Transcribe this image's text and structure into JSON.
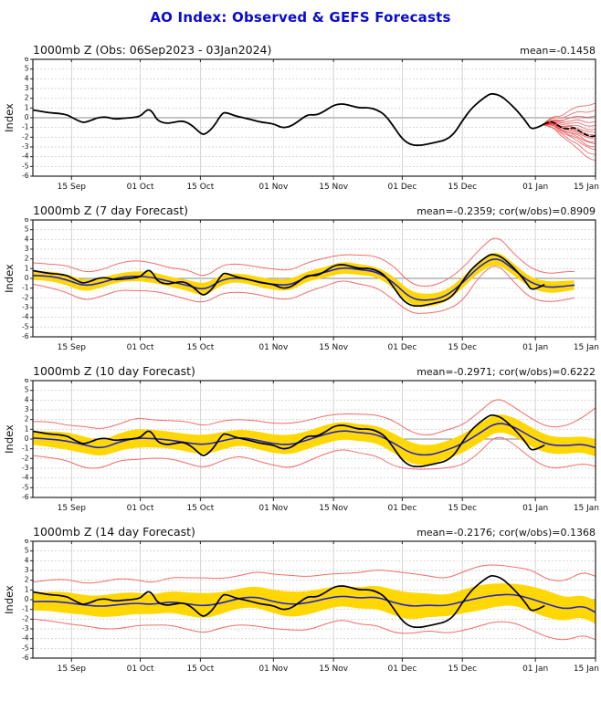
{
  "page_title": "AO Index: Observed & GEFS Forecasts",
  "colors": {
    "title": "#0b0bd0",
    "panel_text": "#111111",
    "observed": "#000000",
    "forecast_mean_line": "#2323c8",
    "ensemble_member": "#e23434",
    "envelope": "#f26c6c",
    "spread_band": "#ffd703",
    "grid": "#cccccc",
    "zero_line": "#8a8a8a",
    "frame": "#222222",
    "tick_text": "#111111"
  },
  "axes": {
    "ylabel": "Index",
    "y_min": -6,
    "y_max": 6,
    "y_ticks": [
      6,
      5,
      4,
      3,
      2,
      1,
      0,
      -1,
      -2,
      -3,
      -4,
      -5,
      -6
    ],
    "x_span_days": 131,
    "x_start_label": "06 Sep 2023",
    "x_ticks": [
      {
        "day": 9,
        "label": "15 Sep"
      },
      {
        "day": 25,
        "label": "01 Oct"
      },
      {
        "day": 39,
        "label": "15 Oct"
      },
      {
        "day": 56,
        "label": "01 Nov"
      },
      {
        "day": 70,
        "label": "15 Nov"
      },
      {
        "day": 86,
        "label": "01 Dec"
      },
      {
        "day": 100,
        "label": "15 Dec"
      },
      {
        "day": 117,
        "label": "01 Jan"
      },
      {
        "day": 131,
        "label": "15 Jan"
      }
    ]
  },
  "chart_data": [
    {
      "type": "line",
      "panel": "observed",
      "title": "1000mb Z (Obs: 06Sep2023 - 03Jan2024)",
      "stats": "mean=-0.1458",
      "ylabel": "Index",
      "ylim": [
        -6,
        6
      ],
      "legend": {
        "observed": "black solid",
        "ensemble_members": "red thin",
        "ensemble_mean_forecast": "black dashed"
      },
      "series": {
        "observed": {
          "points": [
            [
              0,
              0.8
            ],
            [
              2,
              0.65
            ],
            [
              4,
              0.5
            ],
            [
              6,
              0.45
            ],
            [
              8,
              0.3
            ],
            [
              9,
              0.05
            ],
            [
              11,
              -0.4
            ],
            [
              12,
              -0.5
            ],
            [
              14,
              -0.2
            ],
            [
              15,
              0.0
            ],
            [
              17,
              0.1
            ],
            [
              19,
              -0.15
            ],
            [
              21,
              -0.05
            ],
            [
              23,
              0.0
            ],
            [
              25,
              0.15
            ],
            [
              26,
              0.6
            ],
            [
              27,
              0.9
            ],
            [
              28,
              0.5
            ],
            [
              29,
              -0.3
            ],
            [
              31,
              -0.6
            ],
            [
              33,
              -0.45
            ],
            [
              35,
              -0.3
            ],
            [
              37,
              -0.75
            ],
            [
              39,
              -1.6
            ],
            [
              40,
              -1.75
            ],
            [
              42,
              -1.0
            ],
            [
              44,
              0.45
            ],
            [
              45,
              0.55
            ],
            [
              47,
              0.2
            ],
            [
              49,
              0.0
            ],
            [
              51,
              -0.2
            ],
            [
              53,
              -0.45
            ],
            [
              56,
              -0.6
            ],
            [
              58,
              -1.05
            ],
            [
              60,
              -0.9
            ],
            [
              62,
              -0.3
            ],
            [
              64,
              0.35
            ],
            [
              66,
              0.25
            ],
            [
              68,
              0.7
            ],
            [
              70,
              1.3
            ],
            [
              72,
              1.45
            ],
            [
              74,
              1.25
            ],
            [
              76,
              1.0
            ],
            [
              78,
              1.05
            ],
            [
              80,
              0.85
            ],
            [
              82,
              0.3
            ],
            [
              84,
              -0.9
            ],
            [
              86,
              -2.2
            ],
            [
              88,
              -2.8
            ],
            [
              90,
              -2.85
            ],
            [
              92,
              -2.7
            ],
            [
              94,
              -2.5
            ],
            [
              96,
              -2.3
            ],
            [
              98,
              -1.7
            ],
            [
              100,
              -0.3
            ],
            [
              102,
              0.9
            ],
            [
              104,
              1.7
            ],
            [
              106,
              2.35
            ],
            [
              107,
              2.5
            ],
            [
              109,
              2.25
            ],
            [
              111,
              1.5
            ],
            [
              113,
              0.6
            ],
            [
              115,
              -0.5
            ],
            [
              116,
              -1.2
            ],
            [
              118,
              -0.9
            ],
            [
              119,
              -0.65
            ]
          ]
        },
        "ensemble_mean": {
          "points": [
            [
              119,
              -0.65
            ],
            [
              120,
              -0.45
            ],
            [
              121,
              -0.4
            ],
            [
              122,
              -0.7
            ],
            [
              123,
              -1.0
            ],
            [
              124,
              -1.15
            ],
            [
              125,
              -1.1
            ],
            [
              126,
              -1.0
            ],
            [
              127,
              -1.3
            ],
            [
              128,
              -1.55
            ],
            [
              129,
              -1.8
            ],
            [
              130,
              -1.95
            ],
            [
              131,
              -1.85
            ]
          ]
        },
        "members": {
          "days": [
            119,
            121,
            123,
            125,
            127,
            129,
            131
          ],
          "values": [
            [
              -0.8,
              -0.9,
              -1.9,
              -2.5,
              -3.2,
              -4.1,
              -4.4
            ],
            [
              -0.7,
              -0.9,
              -1.6,
              -2.3,
              -2.7,
              -3.6,
              -3.8
            ],
            [
              -0.72,
              -0.6,
              -1.55,
              -1.85,
              -2.45,
              -3.0,
              -3.3
            ],
            [
              -0.68,
              -0.7,
              -1.3,
              -1.8,
              -2.1,
              -2.9,
              -3.0
            ],
            [
              -0.7,
              -0.5,
              -1.35,
              -1.5,
              -2.0,
              -2.5,
              -2.7
            ],
            [
              -0.73,
              -0.45,
              -1.25,
              -1.55,
              -1.7,
              -2.45,
              -2.5
            ],
            [
              -0.69,
              -0.55,
              -1.05,
              -1.35,
              -1.6,
              -2.05,
              -2.2
            ],
            [
              -0.71,
              -0.35,
              -1.1,
              -1.2,
              -1.45,
              -1.9,
              -2.0
            ],
            [
              -0.7,
              -0.45,
              -0.9,
              -1.1,
              -1.3,
              -1.7,
              -1.8
            ],
            [
              -0.68,
              -0.3,
              -0.95,
              -0.85,
              -1.1,
              -1.45,
              -1.5
            ],
            [
              -0.66,
              -0.35,
              -0.7,
              -0.8,
              -0.75,
              -1.25,
              -1.2
            ],
            [
              -0.7,
              -0.25,
              -0.55,
              -0.6,
              -0.45,
              -0.9,
              -0.8
            ],
            [
              -0.64,
              -0.2,
              -0.4,
              -0.4,
              -0.15,
              -0.55,
              -0.4
            ],
            [
              -0.62,
              -0.1,
              -0.35,
              0.0,
              0.2,
              0.0,
              0.2
            ],
            [
              -0.6,
              0.1,
              -0.1,
              0.3,
              0.7,
              0.5,
              0.8
            ],
            [
              -0.58,
              0.2,
              0.1,
              0.8,
              1.2,
              1.2,
              1.5
            ]
          ]
        }
      }
    },
    {
      "type": "line",
      "panel": "forecast_7day",
      "title": "1000mb Z (7 day Forecast)",
      "stats": "mean=-0.2359; cor(w/obs)=0.8909",
      "ylabel": "Index",
      "ylim": [
        -6,
        6
      ],
      "legend": {
        "observed": "black solid",
        "ensemble_mean": "blue",
        "spread_band": "yellow",
        "min_max_envelope": "red"
      },
      "series": {
        "days": [
          0,
          4,
          8,
          12,
          16,
          20,
          24,
          28,
          32,
          36,
          40,
          44,
          48,
          52,
          56,
          60,
          64,
          68,
          72,
          76,
          80,
          84,
          88,
          92,
          96,
          100,
          104,
          108,
          112,
          116,
          120,
          124,
          126
        ],
        "ens_mean": [
          0.3,
          0.25,
          -0.15,
          -0.8,
          -0.45,
          0.1,
          0.25,
          0.1,
          -0.35,
          -0.7,
          -1.25,
          -0.1,
          0.1,
          -0.3,
          -0.65,
          -0.7,
          0.25,
          0.6,
          1.15,
          0.9,
          0.7,
          -0.4,
          -2.1,
          -2.3,
          -1.9,
          -0.5,
          1.3,
          2.25,
          0.9,
          -0.5,
          -0.95,
          -0.8,
          -0.7
        ],
        "band_halfwidth": [
          0.45,
          0.5,
          0.55,
          0.6,
          0.5,
          0.45,
          0.5,
          0.55,
          0.5,
          0.55,
          0.65,
          0.5,
          0.45,
          0.5,
          0.55,
          0.6,
          0.5,
          0.55,
          0.6,
          0.55,
          0.5,
          0.6,
          0.7,
          0.65,
          0.6,
          0.55,
          0.6,
          0.65,
          0.6,
          0.55,
          0.6,
          0.55,
          0.5
        ],
        "env_upper": [
          1.6,
          1.45,
          1.35,
          0.6,
          0.85,
          1.6,
          1.85,
          1.6,
          1.05,
          0.9,
          0.05,
          1.4,
          1.5,
          1.2,
          0.95,
          0.8,
          1.65,
          2.1,
          2.45,
          2.4,
          2.3,
          1.3,
          -0.6,
          -0.9,
          -0.3,
          1.0,
          3.0,
          4.55,
          2.5,
          1.0,
          0.45,
          0.7,
          0.7
        ],
        "env_lower": [
          -0.6,
          -0.95,
          -1.45,
          -2.3,
          -1.85,
          -1.2,
          -1.25,
          -1.3,
          -1.65,
          -2.2,
          -2.55,
          -1.5,
          -1.4,
          -1.6,
          -2.05,
          -2.2,
          -1.35,
          -0.8,
          -0.15,
          -0.6,
          -0.9,
          -2.2,
          -3.6,
          -3.6,
          -3.3,
          -2.4,
          0.3,
          1.65,
          -0.4,
          -2.1,
          -2.45,
          -2.2,
          -2.0
        ]
      },
      "observed_overlay": true
    },
    {
      "type": "line",
      "panel": "forecast_10day",
      "title": "1000mb Z (10 day Forecast)",
      "stats": "mean=-0.2971; cor(w/obs)=0.6222",
      "ylabel": "Index",
      "ylim": [
        -6,
        6
      ],
      "series": {
        "days": [
          0,
          4,
          8,
          12,
          16,
          20,
          24,
          28,
          32,
          36,
          40,
          44,
          48,
          52,
          56,
          60,
          64,
          68,
          72,
          76,
          80,
          84,
          88,
          92,
          96,
          100,
          104,
          108,
          112,
          116,
          120,
          124,
          128,
          131
        ],
        "ens_mean": [
          0.1,
          0.0,
          -0.2,
          -0.6,
          -1.0,
          -0.3,
          0.1,
          0.05,
          -0.1,
          -0.4,
          -0.6,
          -0.2,
          0.2,
          -0.1,
          -0.5,
          -0.6,
          -0.1,
          0.5,
          0.9,
          0.65,
          0.5,
          -0.4,
          -1.5,
          -1.7,
          -1.2,
          -0.5,
          0.6,
          1.75,
          1.3,
          0.2,
          -0.6,
          -0.7,
          -0.5,
          -0.9
        ],
        "band_halfwidth": [
          0.7,
          0.8,
          0.9,
          0.85,
          0.8,
          0.9,
          0.95,
          0.9,
          0.85,
          0.9,
          1.0,
          0.9,
          0.8,
          0.9,
          0.95,
          1.0,
          0.9,
          0.95,
          0.9,
          0.85,
          0.9,
          1.0,
          1.1,
          1.0,
          0.9,
          0.95,
          1.0,
          0.9,
          0.95,
          1.0,
          0.9,
          0.85,
          0.8,
          0.9
        ],
        "env_upper": [
          1.8,
          1.8,
          1.4,
          1.3,
          1.0,
          1.5,
          2.2,
          1.95,
          1.9,
          1.8,
          1.3,
          1.9,
          2.0,
          1.9,
          1.6,
          1.6,
          1.9,
          2.4,
          2.6,
          2.55,
          2.5,
          1.9,
          0.7,
          0.3,
          0.9,
          1.4,
          2.8,
          4.35,
          3.3,
          2.1,
          1.2,
          1.3,
          2.2,
          3.2
        ],
        "env_lower": [
          -1.7,
          -1.9,
          -2.2,
          -3.0,
          -3.0,
          -2.2,
          -2.1,
          -1.95,
          -2.0,
          -2.5,
          -3.0,
          -2.2,
          -1.7,
          -2.2,
          -2.7,
          -3.0,
          -2.3,
          -1.5,
          -1.0,
          -1.45,
          -1.7,
          -2.8,
          -3.1,
          -3.1,
          -3.0,
          -2.7,
          -1.4,
          0.5,
          -0.5,
          -2.0,
          -3.0,
          -2.9,
          -2.5,
          -2.8
        ]
      },
      "observed_overlay": true
    },
    {
      "type": "line",
      "panel": "forecast_14day",
      "title": "1000mb Z (14 day Forecast)",
      "stats": "mean=-0.2176; cor(w/obs)=0.1368",
      "ylabel": "Index",
      "ylim": [
        -6,
        6
      ],
      "series": {
        "days": [
          0,
          4,
          8,
          12,
          16,
          20,
          24,
          28,
          32,
          36,
          40,
          44,
          48,
          52,
          56,
          60,
          64,
          68,
          72,
          76,
          80,
          84,
          88,
          92,
          96,
          100,
          104,
          108,
          112,
          116,
          120,
          124,
          128,
          131
        ],
        "ens_mean": [
          -0.2,
          -0.15,
          -0.3,
          -0.55,
          -0.7,
          -0.5,
          -0.35,
          -0.5,
          -0.2,
          -0.45,
          -0.65,
          -0.35,
          0.15,
          0.3,
          -0.2,
          -0.5,
          -0.35,
          0.1,
          0.4,
          0.15,
          0.3,
          -0.3,
          -0.7,
          -0.55,
          -0.65,
          -0.2,
          0.2,
          0.5,
          0.55,
          0.1,
          -0.5,
          -1.0,
          -0.6,
          -1.3
        ],
        "band_halfwidth": [
          0.9,
          1.0,
          1.1,
          1.0,
          1.1,
          1.2,
          1.1,
          1.0,
          1.1,
          1.2,
          1.3,
          1.1,
          1.0,
          1.1,
          1.2,
          1.3,
          1.2,
          1.1,
          1.0,
          1.1,
          1.2,
          1.3,
          1.4,
          1.2,
          1.1,
          1.2,
          1.3,
          1.2,
          1.1,
          1.3,
          1.4,
          1.2,
          1.1,
          1.2
        ],
        "env_upper": [
          1.8,
          2.05,
          2.1,
          1.65,
          1.8,
          2.2,
          2.05,
          1.7,
          2.3,
          2.25,
          2.25,
          2.15,
          2.45,
          2.9,
          2.6,
          2.5,
          2.35,
          2.6,
          2.7,
          2.75,
          3.1,
          2.9,
          2.7,
          2.45,
          2.15,
          2.8,
          3.5,
          3.6,
          3.35,
          3.1,
          2.0,
          1.9,
          2.9,
          2.4
        ],
        "env_lower": [
          -2.0,
          -2.15,
          -2.5,
          -2.65,
          -3.0,
          -3.0,
          -2.65,
          -2.6,
          -2.6,
          -3.05,
          -3.45,
          -2.85,
          -2.55,
          -2.7,
          -3.0,
          -3.1,
          -3.15,
          -2.5,
          -2.0,
          -2.55,
          -2.6,
          -3.4,
          -3.5,
          -3.15,
          -3.45,
          -3.2,
          -2.7,
          -2.2,
          -2.35,
          -3.1,
          -3.9,
          -4.2,
          -3.6,
          -4.1
        ]
      },
      "observed_overlay": true
    }
  ]
}
